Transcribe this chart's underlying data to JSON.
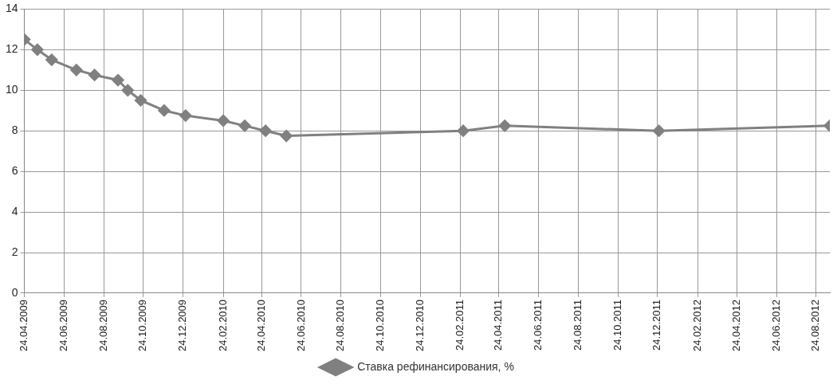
{
  "chart_data": {
    "type": "line",
    "x": [
      "2009-04-24",
      "2009-05-14",
      "2009-06-05",
      "2009-07-13",
      "2009-08-10",
      "2009-09-15",
      "2009-09-30",
      "2009-10-20",
      "2009-11-25",
      "2009-12-28",
      "2010-02-24",
      "2010-03-29",
      "2010-04-30",
      "2010-06-01",
      "2011-02-28",
      "2011-05-03",
      "2011-12-26",
      "2012-09-14"
    ],
    "series": [
      {
        "name": "Ставка рефинансирования, %",
        "color": "#808080",
        "values": [
          12.5,
          12,
          11.5,
          11,
          10.75,
          10.5,
          10,
          9.5,
          9,
          8.75,
          8.5,
          8.25,
          8,
          7.75,
          8,
          8.25,
          8,
          8.25
        ]
      }
    ],
    "xlim": [
      "2009-04-24",
      "2012-09-14"
    ],
    "xticks": [
      {
        "value": "2009-04-24",
        "label": "24.04.2009"
      },
      {
        "value": "2009-06-24",
        "label": "24.06.2009"
      },
      {
        "value": "2009-08-24",
        "label": "24.08.2009"
      },
      {
        "value": "2009-10-24",
        "label": "24.10.2009"
      },
      {
        "value": "2009-12-24",
        "label": "24.12.2009"
      },
      {
        "value": "2010-02-24",
        "label": "24.02.2010"
      },
      {
        "value": "2010-04-24",
        "label": "24.04.2010"
      },
      {
        "value": "2010-06-24",
        "label": "24.06.2010"
      },
      {
        "value": "2010-08-24",
        "label": "24.08.2010"
      },
      {
        "value": "2010-10-24",
        "label": "24.10.2010"
      },
      {
        "value": "2010-12-24",
        "label": "24.12.2010"
      },
      {
        "value": "2011-02-24",
        "label": "24.02.2011"
      },
      {
        "value": "2011-04-24",
        "label": "24.04.2011"
      },
      {
        "value": "2011-06-24",
        "label": "24.06.2011"
      },
      {
        "value": "2011-08-24",
        "label": "24.08.2011"
      },
      {
        "value": "2011-10-24",
        "label": "24.10.2011"
      },
      {
        "value": "2011-12-24",
        "label": "24.12.2011"
      },
      {
        "value": "2012-02-24",
        "label": "24.02.2012"
      },
      {
        "value": "2012-04-24",
        "label": "24.04.2012"
      },
      {
        "value": "2012-06-24",
        "label": "24.06.2012"
      },
      {
        "value": "2012-08-24",
        "label": "24.08.2012"
      }
    ],
    "ylim": [
      0,
      14
    ],
    "yticks": [
      0,
      2,
      4,
      6,
      8,
      10,
      12,
      14
    ],
    "grid": true,
    "legend": "bottom",
    "marker": "diamond",
    "line_style": "solid"
  }
}
